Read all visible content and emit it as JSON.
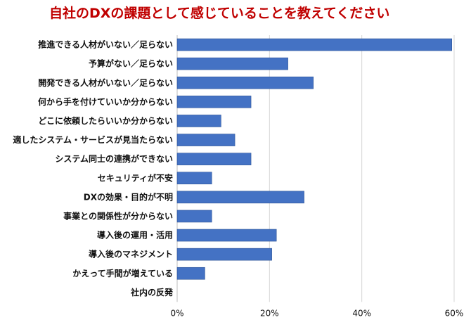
{
  "colors": {
    "title": "#c00000",
    "bar": "#4472c4",
    "bar_edge": "#2f5597"
  },
  "chart_data": {
    "type": "bar",
    "orientation": "horizontal",
    "title": "自社のDXの課題として感じていることを教えてください",
    "xlabel": "",
    "ylabel": "",
    "categories": [
      "推進できる人材がいない／足らない",
      "予算がない／足らない",
      "開発できる人材がいない／足らない",
      "何から手を付けていいか分からない",
      "どこに依頼したらいいか分からない",
      "適したシステム・サービスが見当たらない",
      "システム同士の連携ができない",
      "セキュリティが不安",
      "DXの効果・目的が不明",
      "事業との関係性が分からない",
      "導入後の運用・活用",
      "導入後のマネジメント",
      "かえって手間が増えている",
      "社内の反発"
    ],
    "values": [
      59.5,
      24,
      29.5,
      16,
      9.5,
      12.5,
      16,
      7.5,
      27.5,
      7.5,
      21.5,
      20.5,
      6,
      0
    ],
    "xlim": [
      0,
      60
    ],
    "ticks": [
      0,
      20,
      40,
      60
    ],
    "tick_labels": [
      "0%",
      "20%",
      "40%",
      "60%"
    ],
    "grid": true,
    "legend": "none"
  }
}
